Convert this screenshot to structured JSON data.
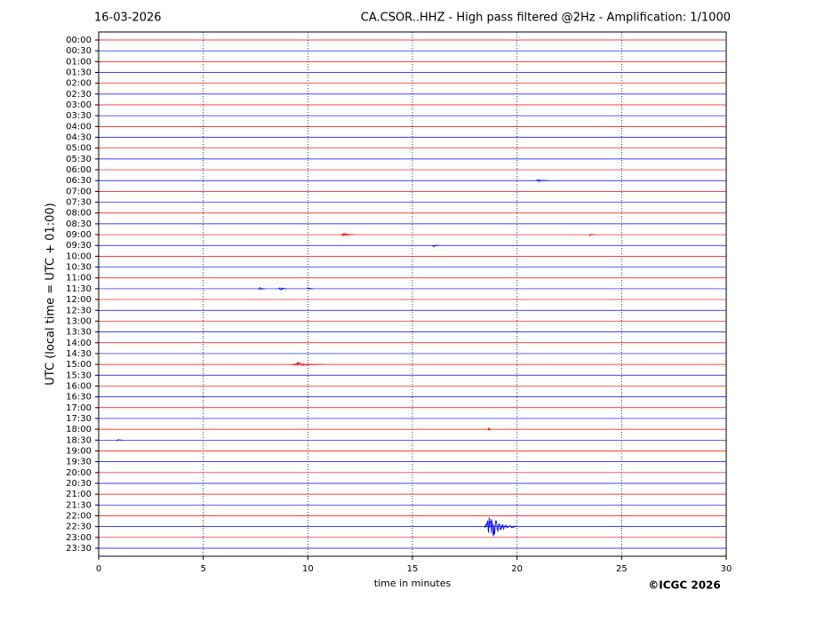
{
  "chart_data": {
    "type": "helicorder",
    "date": "16-03-2026",
    "title": "CA.CSOR..HHZ - High pass filtered @2Hz - Amplification: 1/1000",
    "y_label": "UTC (local time = UTC + 01:00)",
    "x_label": "time in minutes",
    "credit": "©ICGC 2026",
    "categories": [
      "00:00",
      "00:30",
      "01:00",
      "01:30",
      "02:00",
      "02:30",
      "03:00",
      "03:30",
      "04:00",
      "04:30",
      "05:00",
      "05:30",
      "06:00",
      "06:30",
      "07:00",
      "07:30",
      "08:00",
      "08:30",
      "09:00",
      "09:30",
      "10:00",
      "10:30",
      "11:00",
      "11:30",
      "12:00",
      "12:30",
      "13:00",
      "13:30",
      "14:00",
      "14:30",
      "15:00",
      "15:30",
      "16:00",
      "16:30",
      "17:00",
      "17:30",
      "18:00",
      "18:30",
      "19:00",
      "19:30",
      "20:00",
      "20:30",
      "21:00",
      "21:30",
      "22:00",
      "22:30",
      "23:00",
      "23:30"
    ],
    "colors": [
      "#ff0000",
      "#0000ff"
    ],
    "xlim": [
      0,
      30
    ],
    "xticks": [
      0,
      5,
      10,
      15,
      20,
      25,
      30
    ],
    "grid": true,
    "events": [
      {
        "row": 13,
        "x": 21.2,
        "duration": 0.6,
        "amplitude": 0.15
      },
      {
        "row": 18,
        "x": 11.9,
        "duration": 0.6,
        "amplitude": 0.2
      },
      {
        "row": 18,
        "x": 23.6,
        "duration": 0.3,
        "amplitude": 0.15
      },
      {
        "row": 19,
        "x": 16.1,
        "duration": 0.3,
        "amplitude": 0.15
      },
      {
        "row": 23,
        "x": 7.8,
        "duration": 0.3,
        "amplitude": 0.15
      },
      {
        "row": 23,
        "x": 8.8,
        "duration": 0.4,
        "amplitude": 0.2
      },
      {
        "row": 23,
        "x": 10.1,
        "duration": 0.3,
        "amplitude": 0.15
      },
      {
        "row": 30,
        "x": 10,
        "duration": 1.5,
        "amplitude": 0.2
      },
      {
        "row": 36,
        "x": 18.7,
        "duration": 0.2,
        "amplitude": 0.2
      },
      {
        "row": 37,
        "x": 1,
        "duration": 0.3,
        "amplitude": 0.1
      },
      {
        "row": 45,
        "x": 19.2,
        "duration": 1.5,
        "amplitude": 1.3
      }
    ]
  }
}
